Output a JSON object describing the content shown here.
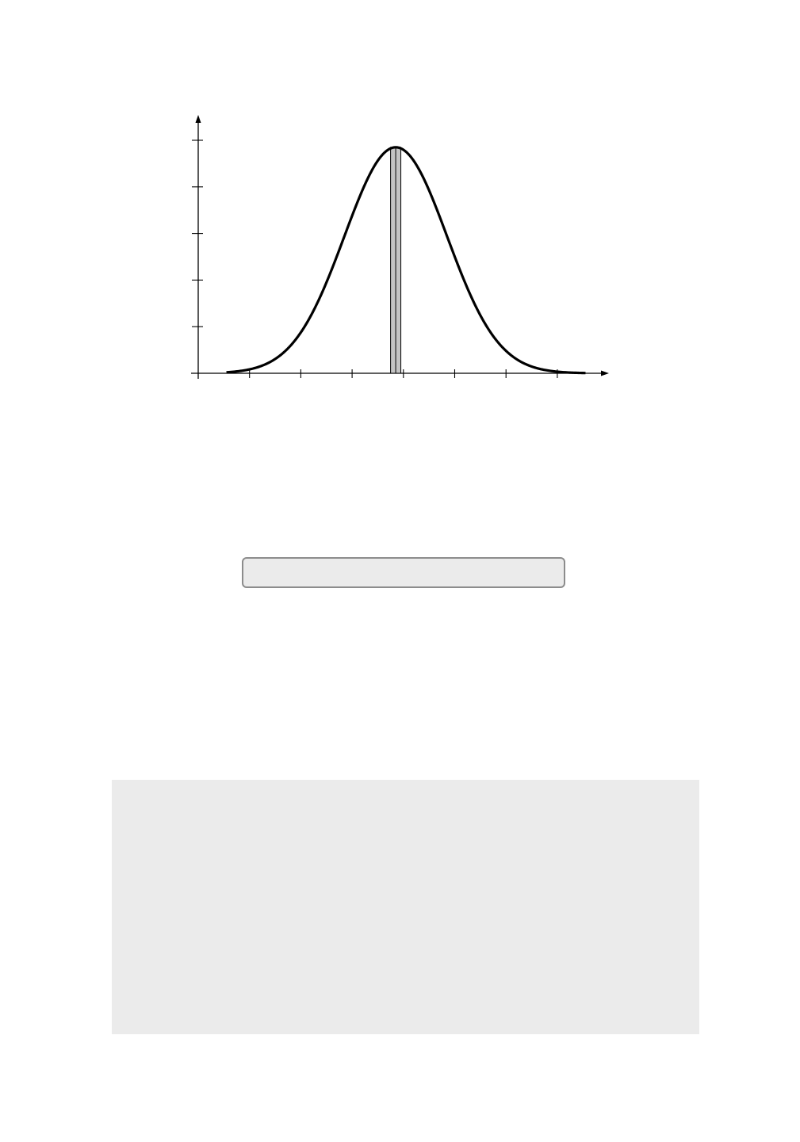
{
  "colors": {
    "curve": "#000000",
    "axis": "#000000",
    "bar_fill": "#c4c4c4",
    "bar_stroke": "#000000",
    "caption_box_fill": "#ebebeb",
    "caption_box_border": "#8c8c8c",
    "panel_fill": "#ebebeb"
  },
  "chart_data": {
    "type": "area",
    "title": "",
    "xlabel": "",
    "ylabel": "",
    "xlim": [
      0,
      8
    ],
    "ylim": [
      0,
      5
    ],
    "x_ticks": [
      1,
      2,
      3,
      4,
      5,
      6,
      7
    ],
    "y_ticks": [
      1,
      2,
      3,
      4,
      5
    ],
    "grid": false,
    "series": [
      {
        "kind": "normal-density-curve",
        "mean": 3.85,
        "sd": 1.0,
        "peak": 4.85,
        "x_range": [
          0.55,
          7.55
        ]
      }
    ],
    "highlight_bar": {
      "x_start": 3.75,
      "x_end": 3.95,
      "divider": 3.85
    }
  }
}
